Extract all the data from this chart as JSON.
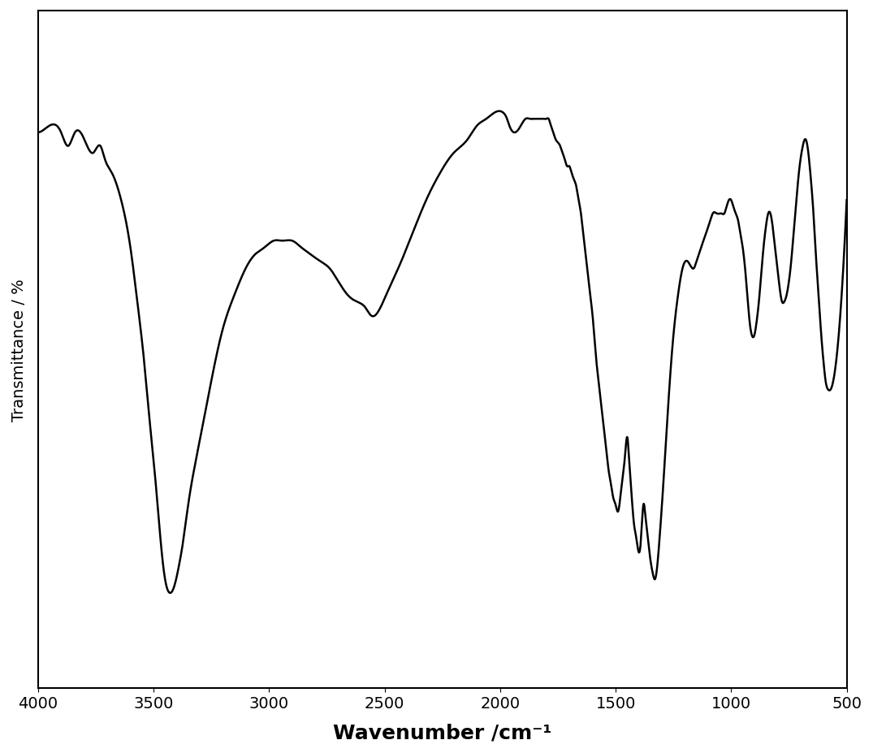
{
  "xlabel": "Wavenumber /cm⁻¹",
  "ylabel": "Transmittance / %",
  "xlim": [
    4000,
    500
  ],
  "ylim": [
    0,
    100
  ],
  "xticks": [
    4000,
    3500,
    3000,
    2500,
    2000,
    1500,
    1000,
    500
  ],
  "line_color": "#000000",
  "line_width": 1.8,
  "bg_color": "#ffffff",
  "xlabel_fontsize": 18,
  "ylabel_fontsize": 14,
  "tick_fontsize": 14,
  "keypoints": [
    [
      4000,
      82
    ],
    [
      3950,
      83
    ],
    [
      3900,
      82
    ],
    [
      3870,
      80
    ],
    [
      3840,
      82
    ],
    [
      3800,
      81
    ],
    [
      3760,
      79
    ],
    [
      3730,
      80
    ],
    [
      3710,
      78
    ],
    [
      3680,
      76
    ],
    [
      3640,
      72
    ],
    [
      3600,
      65
    ],
    [
      3570,
      57
    ],
    [
      3540,
      48
    ],
    [
      3510,
      37
    ],
    [
      3490,
      30
    ],
    [
      3470,
      22
    ],
    [
      3450,
      16
    ],
    [
      3430,
      14
    ],
    [
      3410,
      15
    ],
    [
      3390,
      18
    ],
    [
      3370,
      22
    ],
    [
      3350,
      27
    ],
    [
      3320,
      33
    ],
    [
      3280,
      40
    ],
    [
      3240,
      47
    ],
    [
      3200,
      53
    ],
    [
      3150,
      58
    ],
    [
      3100,
      62
    ],
    [
      3060,
      64
    ],
    [
      3020,
      65
    ],
    [
      2980,
      66
    ],
    [
      2940,
      66
    ],
    [
      2900,
      66
    ],
    [
      2860,
      65
    ],
    [
      2820,
      64
    ],
    [
      2780,
      63
    ],
    [
      2740,
      62
    ],
    [
      2700,
      60
    ],
    [
      2660,
      58
    ],
    [
      2620,
      57
    ],
    [
      2580,
      56
    ],
    [
      2560,
      55
    ],
    [
      2540,
      55
    ],
    [
      2520,
      56
    ],
    [
      2480,
      59
    ],
    [
      2440,
      62
    ],
    [
      2380,
      67
    ],
    [
      2320,
      72
    ],
    [
      2260,
      76
    ],
    [
      2200,
      79
    ],
    [
      2140,
      81
    ],
    [
      2100,
      83
    ],
    [
      2060,
      84
    ],
    [
      2020,
      85
    ],
    [
      1990,
      85
    ],
    [
      1970,
      84
    ],
    [
      1960,
      83
    ],
    [
      1940,
      82
    ],
    [
      1910,
      83
    ],
    [
      1890,
      84
    ],
    [
      1870,
      84
    ],
    [
      1850,
      84
    ],
    [
      1830,
      84
    ],
    [
      1820,
      84
    ],
    [
      1810,
      84
    ],
    [
      1800,
      84
    ],
    [
      1790,
      84
    ],
    [
      1780,
      83
    ],
    [
      1770,
      82
    ],
    [
      1760,
      81
    ],
    [
      1740,
      80
    ],
    [
      1730,
      79
    ],
    [
      1720,
      78
    ],
    [
      1710,
      77
    ],
    [
      1700,
      77
    ],
    [
      1690,
      76
    ],
    [
      1680,
      75
    ],
    [
      1670,
      74
    ],
    [
      1660,
      72
    ],
    [
      1650,
      70
    ],
    [
      1640,
      67
    ],
    [
      1630,
      64
    ],
    [
      1620,
      61
    ],
    [
      1610,
      58
    ],
    [
      1600,
      55
    ],
    [
      1590,
      51
    ],
    [
      1580,
      47
    ],
    [
      1570,
      44
    ],
    [
      1560,
      41
    ],
    [
      1550,
      38
    ],
    [
      1540,
      35
    ],
    [
      1530,
      32
    ],
    [
      1520,
      30
    ],
    [
      1510,
      28
    ],
    [
      1500,
      27
    ],
    [
      1490,
      26
    ],
    [
      1480,
      28
    ],
    [
      1470,
      31
    ],
    [
      1460,
      34
    ],
    [
      1450,
      37
    ],
    [
      1440,
      33
    ],
    [
      1430,
      28
    ],
    [
      1420,
      24
    ],
    [
      1410,
      22
    ],
    [
      1400,
      20
    ],
    [
      1390,
      22
    ],
    [
      1380,
      27
    ],
    [
      1370,
      25
    ],
    [
      1360,
      22
    ],
    [
      1350,
      19
    ],
    [
      1340,
      17
    ],
    [
      1330,
      16
    ],
    [
      1310,
      22
    ],
    [
      1290,
      32
    ],
    [
      1270,
      43
    ],
    [
      1250,
      52
    ],
    [
      1230,
      58
    ],
    [
      1210,
      62
    ],
    [
      1190,
      63
    ],
    [
      1170,
      62
    ],
    [
      1160,
      62
    ],
    [
      1150,
      63
    ],
    [
      1140,
      64
    ],
    [
      1130,
      65
    ],
    [
      1110,
      67
    ],
    [
      1090,
      69
    ],
    [
      1080,
      70
    ],
    [
      1060,
      70
    ],
    [
      1040,
      70
    ],
    [
      1030,
      70
    ],
    [
      1020,
      71
    ],
    [
      1010,
      72
    ],
    [
      1000,
      72
    ],
    [
      990,
      71
    ],
    [
      980,
      70
    ],
    [
      970,
      69
    ],
    [
      960,
      67
    ],
    [
      950,
      65
    ],
    [
      940,
      62
    ],
    [
      930,
      58
    ],
    [
      920,
      54
    ],
    [
      910,
      52
    ],
    [
      900,
      52
    ],
    [
      890,
      54
    ],
    [
      880,
      57
    ],
    [
      870,
      61
    ],
    [
      860,
      65
    ],
    [
      850,
      68
    ],
    [
      840,
      70
    ],
    [
      830,
      70
    ],
    [
      820,
      68
    ],
    [
      810,
      65
    ],
    [
      800,
      62
    ],
    [
      790,
      59
    ],
    [
      780,
      57
    ],
    [
      770,
      57
    ],
    [
      760,
      58
    ],
    [
      750,
      60
    ],
    [
      740,
      63
    ],
    [
      730,
      67
    ],
    [
      720,
      71
    ],
    [
      710,
      75
    ],
    [
      700,
      78
    ],
    [
      690,
      80
    ],
    [
      680,
      81
    ],
    [
      670,
      80
    ],
    [
      660,
      77
    ],
    [
      650,
      73
    ],
    [
      640,
      68
    ],
    [
      630,
      62
    ],
    [
      620,
      57
    ],
    [
      610,
      52
    ],
    [
      600,
      48
    ],
    [
      590,
      45
    ],
    [
      580,
      44
    ],
    [
      570,
      44
    ],
    [
      560,
      45
    ],
    [
      550,
      47
    ],
    [
      540,
      50
    ],
    [
      530,
      54
    ],
    [
      520,
      59
    ],
    [
      510,
      65
    ],
    [
      500,
      72
    ]
  ]
}
